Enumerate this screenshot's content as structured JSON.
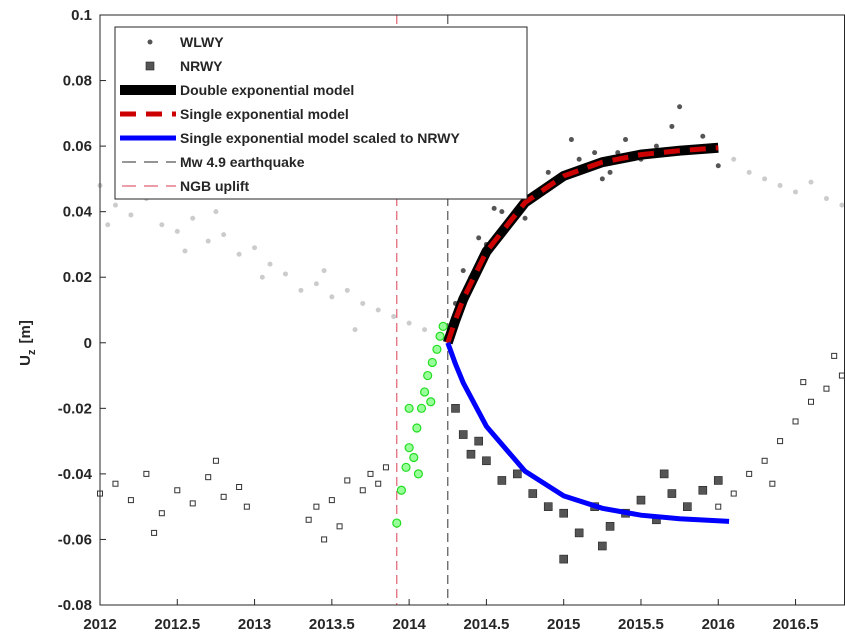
{
  "chart_data": {
    "type": "scatter",
    "ylabel": {
      "main": "U",
      "sub": "z",
      "unit": "[m]"
    },
    "xlim": [
      2012,
      2016.82
    ],
    "xticks": [
      2012,
      2012.5,
      2013,
      2013.5,
      2014,
      2014.5,
      2015,
      2015.5,
      2016,
      2016.5
    ],
    "ylim": [
      -0.08,
      0.1
    ],
    "yticks": [
      -0.08,
      -0.06,
      -0.04,
      -0.02,
      0,
      0.02,
      0.04,
      0.06,
      0.08,
      0.1
    ],
    "series": [
      {
        "kind": "point",
        "marker": "dot",
        "color": "#cccccc",
        "x": [
          2012.0,
          2012.05,
          2012.1,
          2012.2,
          2012.25,
          2012.3,
          2012.4,
          2012.5,
          2012.55,
          2012.6,
          2012.7,
          2012.75,
          2012.8,
          2012.9,
          2013.0,
          2013.05,
          2013.1,
          2013.2,
          2013.3,
          2013.4,
          2013.45,
          2013.5,
          2013.6,
          2013.65,
          2013.7,
          2013.8,
          2013.9,
          2014.0,
          2014.1,
          2016.1,
          2016.2,
          2016.3,
          2016.4,
          2016.5,
          2016.6,
          2016.7,
          2016.8
        ],
        "values": [
          0.048,
          0.036,
          0.042,
          0.039,
          0.05,
          0.044,
          0.036,
          0.034,
          0.028,
          0.038,
          0.031,
          0.04,
          0.033,
          0.027,
          0.029,
          0.02,
          0.024,
          0.021,
          0.016,
          0.018,
          0.022,
          0.014,
          0.016,
          0.004,
          0.012,
          0.01,
          0.008,
          0.006,
          0.004,
          0.056,
          0.052,
          0.05,
          0.048,
          0.046,
          0.049,
          0.044,
          0.042
        ]
      },
      {
        "name": "WLWY",
        "kind": "point",
        "marker": "dot",
        "color": "#555555",
        "x": [
          2014.3,
          2014.35,
          2014.4,
          2014.45,
          2014.5,
          2014.55,
          2014.6,
          2014.7,
          2014.75,
          2014.8,
          2014.9,
          2015.0,
          2015.05,
          2015.1,
          2015.2,
          2015.25,
          2015.3,
          2015.35,
          2015.4,
          2015.5,
          2015.6,
          2015.7,
          2015.75,
          2015.8,
          2015.9,
          2016.0
        ],
        "values": [
          0.012,
          0.022,
          0.02,
          0.032,
          0.03,
          0.041,
          0.04,
          0.046,
          0.038,
          0.044,
          0.052,
          0.05,
          0.062,
          0.056,
          0.058,
          0.05,
          0.052,
          0.058,
          0.062,
          0.056,
          0.06,
          0.066,
          0.072,
          0.058,
          0.063,
          0.054
        ]
      },
      {
        "kind": "point",
        "marker": "open-square",
        "color": "#333333",
        "x": [
          2012.0,
          2012.1,
          2012.2,
          2012.3,
          2012.35,
          2012.4,
          2012.5,
          2012.6,
          2012.7,
          2012.75,
          2012.8,
          2012.9,
          2012.95,
          2013.35,
          2013.4,
          2013.45,
          2013.5,
          2013.55,
          2013.6,
          2013.7,
          2013.75,
          2013.8,
          2013.85,
          2016.0,
          2016.1,
          2016.2,
          2016.3,
          2016.35,
          2016.4,
          2016.5,
          2016.55,
          2016.6,
          2016.7,
          2016.75,
          2016.8
        ],
        "values": [
          -0.046,
          -0.043,
          -0.048,
          -0.04,
          -0.058,
          -0.052,
          -0.045,
          -0.049,
          -0.041,
          -0.036,
          -0.047,
          -0.044,
          -0.05,
          -0.054,
          -0.05,
          -0.06,
          -0.048,
          -0.056,
          -0.042,
          -0.045,
          -0.04,
          -0.043,
          -0.038,
          -0.05,
          -0.046,
          -0.04,
          -0.036,
          -0.043,
          -0.03,
          -0.024,
          -0.012,
          -0.018,
          -0.014,
          -0.004,
          -0.01
        ]
      },
      {
        "name": "NRWY",
        "kind": "point",
        "marker": "square",
        "color": "#555555",
        "x": [
          2014.3,
          2014.35,
          2014.4,
          2014.45,
          2014.5,
          2014.6,
          2014.7,
          2014.8,
          2014.9,
          2015.0,
          2015.0,
          2015.1,
          2015.2,
          2015.25,
          2015.3,
          2015.4,
          2015.5,
          2015.6,
          2015.65,
          2015.7,
          2015.8,
          2015.9,
          2016.0
        ],
        "values": [
          -0.02,
          -0.028,
          -0.034,
          -0.03,
          -0.036,
          -0.042,
          -0.04,
          -0.046,
          -0.05,
          -0.052,
          -0.066,
          -0.058,
          -0.05,
          -0.062,
          -0.056,
          -0.052,
          -0.048,
          -0.054,
          -0.04,
          -0.046,
          -0.05,
          -0.045,
          -0.042
        ]
      },
      {
        "kind": "point",
        "marker": "ring",
        "color": "#22dd22",
        "x": [
          2013.92,
          2013.95,
          2013.98,
          2014.0,
          2014.0,
          2014.03,
          2014.05,
          2014.06,
          2014.08,
          2014.1,
          2014.12,
          2014.14,
          2014.15,
          2014.18,
          2014.2,
          2014.22
        ],
        "values": [
          -0.055,
          -0.045,
          -0.038,
          -0.032,
          -0.02,
          -0.035,
          -0.026,
          -0.04,
          -0.02,
          -0.015,
          -0.01,
          -0.018,
          -0.006,
          -0.002,
          0.002,
          0.005
        ]
      },
      {
        "name": "Double exponential model",
        "kind": "line",
        "style": "solid",
        "width": 10,
        "color": "#000000",
        "x": [
          2014.25,
          2014.3,
          2014.35,
          2014.5,
          2014.75,
          2015.0,
          2015.25,
          2015.5,
          2015.75,
          2016.0
        ],
        "values": [
          0,
          0.007,
          0.0133,
          0.0278,
          0.0428,
          0.0509,
          0.0551,
          0.0574,
          0.0586,
          0.0595
        ]
      },
      {
        "name": "Single exponential model",
        "kind": "line",
        "style": "dashed",
        "width": 5,
        "color": "#cc0000",
        "x": [
          2014.25,
          2014.3,
          2014.35,
          2014.5,
          2014.75,
          2015.0,
          2015.25,
          2015.5,
          2015.75,
          2016.0
        ],
        "values": [
          0,
          0.007,
          0.0133,
          0.0278,
          0.0428,
          0.0509,
          0.0551,
          0.0574,
          0.0586,
          0.0595
        ]
      },
      {
        "name": "Single exponential model scaled to NRWY",
        "kind": "line",
        "style": "solid",
        "width": 5,
        "color": "#0000ff",
        "x": [
          2014.25,
          2014.3,
          2014.35,
          2014.5,
          2014.75,
          2015.0,
          2015.25,
          2015.5,
          2015.75,
          2016.07
        ],
        "values": [
          0,
          -0.0065,
          -0.0122,
          -0.0255,
          -0.0392,
          -0.0467,
          -0.0505,
          -0.0526,
          -0.0537,
          -0.0545
        ]
      }
    ],
    "vlines": [
      {
        "name": "Mw 4.9 earthquake",
        "x": 2014.25,
        "color": "#555555"
      },
      {
        "name": "NGB uplift",
        "x": 2013.92,
        "color": "#e06070"
      }
    ]
  }
}
